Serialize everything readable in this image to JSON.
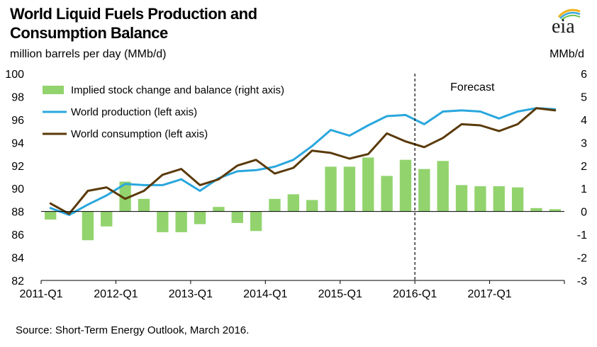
{
  "header": {
    "title_line1": "World Liquid Fuels Production and",
    "title_line2": "Consumption Balance",
    "units_left": "million barrels per day (MMb/d)",
    "units_right": "MMb/d",
    "logo_text": "eia"
  },
  "footer": {
    "source": "Source: Short-Term Energy Outlook, March 2016."
  },
  "colors": {
    "bars": "#92d36e",
    "production": "#2aa7dd",
    "consumption": "#5a3a0a",
    "axis": "#000000",
    "forecast_line": "#000000"
  },
  "chart_data": {
    "type": "bar+line",
    "categories": [
      "2011-Q1",
      "2011-Q2",
      "2011-Q3",
      "2011-Q4",
      "2012-Q1",
      "2012-Q2",
      "2012-Q3",
      "2012-Q4",
      "2013-Q1",
      "2013-Q2",
      "2013-Q3",
      "2013-Q4",
      "2014-Q1",
      "2014-Q2",
      "2014-Q3",
      "2014-Q4",
      "2015-Q1",
      "2015-Q2",
      "2015-Q3",
      "2015-Q4",
      "2016-Q1",
      "2016-Q2",
      "2016-Q3",
      "2016-Q4",
      "2017-Q1",
      "2017-Q2",
      "2017-Q3",
      "2017-Q4"
    ],
    "x_tick_labels": [
      "2011-Q1",
      "2012-Q1",
      "2013-Q1",
      "2014-Q1",
      "2015-Q1",
      "2016-Q1",
      "2017-Q1"
    ],
    "left_axis": {
      "label": "million barrels per day (MMb/d)",
      "range": [
        82,
        100
      ],
      "ticks": [
        82,
        84,
        86,
        88,
        90,
        92,
        94,
        96,
        98,
        100
      ]
    },
    "right_axis": {
      "label": "MMb/d",
      "range": [
        -3,
        6
      ],
      "ticks": [
        -3,
        -2,
        -1,
        0,
        1,
        2,
        3,
        4,
        5,
        6
      ]
    },
    "series": [
      {
        "name": "Implied stock change and balance (right axis)",
        "type": "bar",
        "axis": "right",
        "values": [
          -0.35,
          -0.1,
          -1.25,
          -0.65,
          1.3,
          0.55,
          -0.9,
          -0.9,
          -0.55,
          0.2,
          -0.5,
          -0.85,
          0.55,
          0.75,
          0.5,
          1.95,
          1.95,
          2.35,
          1.55,
          2.25,
          1.85,
          2.2,
          1.15,
          1.1,
          1.1,
          1.05,
          0.15,
          0.1
        ]
      },
      {
        "name": "World production (left axis)",
        "type": "line",
        "axis": "left",
        "values": [
          88.3,
          87.7,
          88.6,
          89.4,
          90.4,
          90.3,
          90.3,
          90.8,
          89.8,
          90.9,
          91.5,
          91.6,
          91.9,
          92.5,
          93.7,
          95.1,
          94.6,
          95.5,
          96.3,
          96.4,
          95.6,
          96.7,
          96.8,
          96.7,
          96.1,
          96.7,
          97.0,
          96.9
        ]
      },
      {
        "name": "World consumption (left axis)",
        "type": "line",
        "axis": "left",
        "values": [
          88.7,
          87.8,
          89.8,
          90.1,
          89.1,
          89.8,
          91.2,
          91.7,
          90.3,
          90.8,
          92.0,
          92.5,
          91.3,
          91.8,
          93.3,
          93.1,
          92.6,
          93.0,
          94.8,
          94.1,
          93.6,
          94.4,
          95.6,
          95.5,
          95.0,
          95.6,
          97.0,
          96.8
        ]
      }
    ],
    "forecast_start": "2016-Q1",
    "annotations": [
      "Forecast"
    ]
  }
}
